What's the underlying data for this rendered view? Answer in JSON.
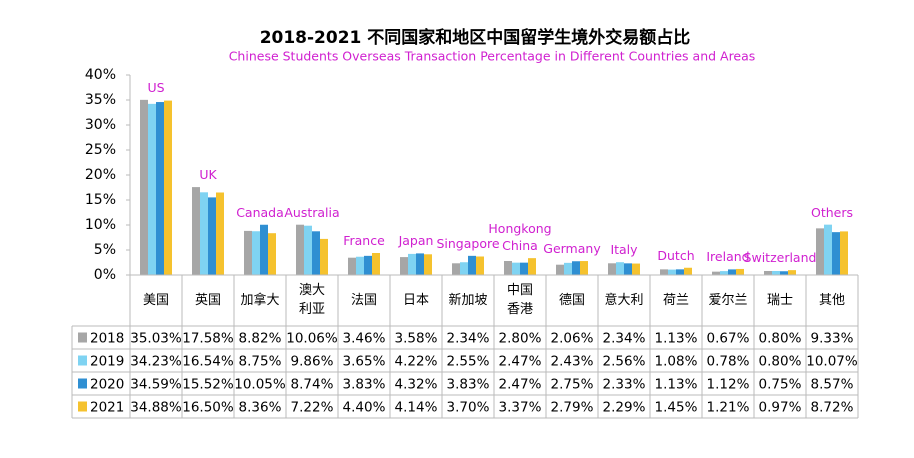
{
  "chart_data": {
    "type": "bar",
    "title": "2018-2021 不同国家和地区中国留学生境外交易额占比",
    "subtitle": "Chinese Students Overseas Transaction Percentage in Different Countries and Areas",
    "categories": [
      "美国",
      "英国",
      "加拿大",
      "澳大利亚",
      "法国",
      "日本",
      "新加坡",
      "中国香港",
      "德国",
      "意大利",
      "荷兰",
      "爱尔兰",
      "瑞士",
      "其他"
    ],
    "annotations": [
      "US",
      "UK",
      "Canada",
      "Australia",
      "France",
      "Japan",
      "Singapore",
      "Hongkong China",
      "Germany",
      "Italy",
      "Dutch",
      "Ireland",
      "Switzerland",
      "Others"
    ],
    "ylim": [
      0,
      40
    ],
    "yticks": [
      {
        "value": 0,
        "label": "0%"
      },
      {
        "value": 5,
        "label": "5%"
      },
      {
        "value": 10,
        "label": "10%"
      },
      {
        "value": 15,
        "label": "15%"
      },
      {
        "value": 20,
        "label": "20%"
      },
      {
        "value": 25,
        "label": "25%"
      },
      {
        "value": 30,
        "label": "30%"
      },
      {
        "value": 35,
        "label": "35%"
      },
      {
        "value": 40,
        "label": "40%"
      }
    ],
    "series": [
      {
        "name": "2018",
        "color": "#a6a6a6",
        "values": [
          35.03,
          17.58,
          8.82,
          10.06,
          3.46,
          3.58,
          2.34,
          2.8,
          2.06,
          2.34,
          1.13,
          0.67,
          0.8,
          9.33
        ],
        "value_labels": [
          "35.03%",
          "17.58%",
          "8.82%",
          "10.06%",
          "3.46%",
          "3.58%",
          "2.34%",
          "2.80%",
          "2.06%",
          "2.34%",
          "1.13%",
          "0.67%",
          "0.80%",
          "9.33%"
        ]
      },
      {
        "name": "2019",
        "color": "#7fd3f2",
        "values": [
          34.23,
          16.54,
          8.75,
          9.86,
          3.65,
          4.22,
          2.55,
          2.47,
          2.43,
          2.56,
          1.08,
          0.78,
          0.8,
          10.07
        ],
        "value_labels": [
          "34.23%",
          "16.54%",
          "8.75%",
          "9.86%",
          "3.65%",
          "4.22%",
          "2.55%",
          "2.47%",
          "2.43%",
          "2.56%",
          "1.08%",
          "0.78%",
          "0.80%",
          "10.07%"
        ]
      },
      {
        "name": "2020",
        "color": "#2f8fd2",
        "values": [
          34.59,
          15.52,
          10.05,
          8.74,
          3.83,
          4.32,
          3.83,
          2.47,
          2.75,
          2.33,
          1.13,
          1.12,
          0.75,
          8.57
        ],
        "value_labels": [
          "34.59%",
          "15.52%",
          "10.05%",
          "8.74%",
          "3.83%",
          "4.32%",
          "3.83%",
          "2.47%",
          "2.75%",
          "2.33%",
          "1.13%",
          "1.12%",
          "0.75%",
          "8.57%"
        ]
      },
      {
        "name": "2021",
        "color": "#f5c22e",
        "values": [
          34.88,
          16.5,
          8.36,
          7.22,
          4.4,
          4.14,
          3.7,
          3.37,
          2.79,
          2.29,
          1.45,
          1.21,
          0.97,
          8.72
        ],
        "value_labels": [
          "34.88%",
          "16.50%",
          "8.36%",
          "7.22%",
          "4.40%",
          "4.14%",
          "3.70%",
          "3.37%",
          "2.79%",
          "2.29%",
          "1.45%",
          "1.21%",
          "0.97%",
          "8.72%"
        ]
      }
    ]
  }
}
